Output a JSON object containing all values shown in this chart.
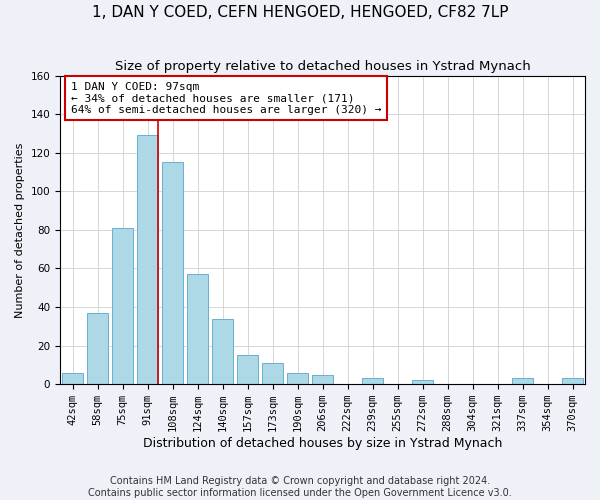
{
  "title": "1, DAN Y COED, CEFN HENGOED, HENGOED, CF82 7LP",
  "subtitle": "Size of property relative to detached houses in Ystrad Mynach",
  "xlabel": "Distribution of detached houses by size in Ystrad Mynach",
  "ylabel": "Number of detached properties",
  "bar_labels": [
    "42sqm",
    "58sqm",
    "75sqm",
    "91sqm",
    "108sqm",
    "124sqm",
    "140sqm",
    "157sqm",
    "173sqm",
    "190sqm",
    "206sqm",
    "222sqm",
    "239sqm",
    "255sqm",
    "272sqm",
    "288sqm",
    "304sqm",
    "321sqm",
    "337sqm",
    "354sqm",
    "370sqm"
  ],
  "bar_heights": [
    6,
    37,
    81,
    129,
    115,
    57,
    34,
    15,
    11,
    6,
    5,
    0,
    3,
    0,
    2,
    0,
    0,
    0,
    3,
    0,
    3
  ],
  "bar_color": "#add8e6",
  "bar_edge_color": "#6baed6",
  "ylim": [
    0,
    160
  ],
  "yticks": [
    0,
    20,
    40,
    60,
    80,
    100,
    120,
    140,
    160
  ],
  "property_line_index": 3,
  "property_line_color": "#cc0000",
  "annotation_title": "1 DAN Y COED: 97sqm",
  "annotation_line1": "← 34% of detached houses are smaller (171)",
  "annotation_line2": "64% of semi-detached houses are larger (320) →",
  "annotation_box_color": "#ffffff",
  "annotation_box_edge_color": "#cc0000",
  "footer_line1": "Contains HM Land Registry data © Crown copyright and database right 2024.",
  "footer_line2": "Contains public sector information licensed under the Open Government Licence v3.0.",
  "background_color": "#eef2f8",
  "plot_background_color": "#ffffff",
  "grid_color": "#d0d0d0",
  "title_fontsize": 11,
  "subtitle_fontsize": 9.5,
  "xlabel_fontsize": 9,
  "ylabel_fontsize": 8,
  "tick_fontsize": 7.5,
  "annotation_fontsize": 8,
  "footer_fontsize": 7
}
